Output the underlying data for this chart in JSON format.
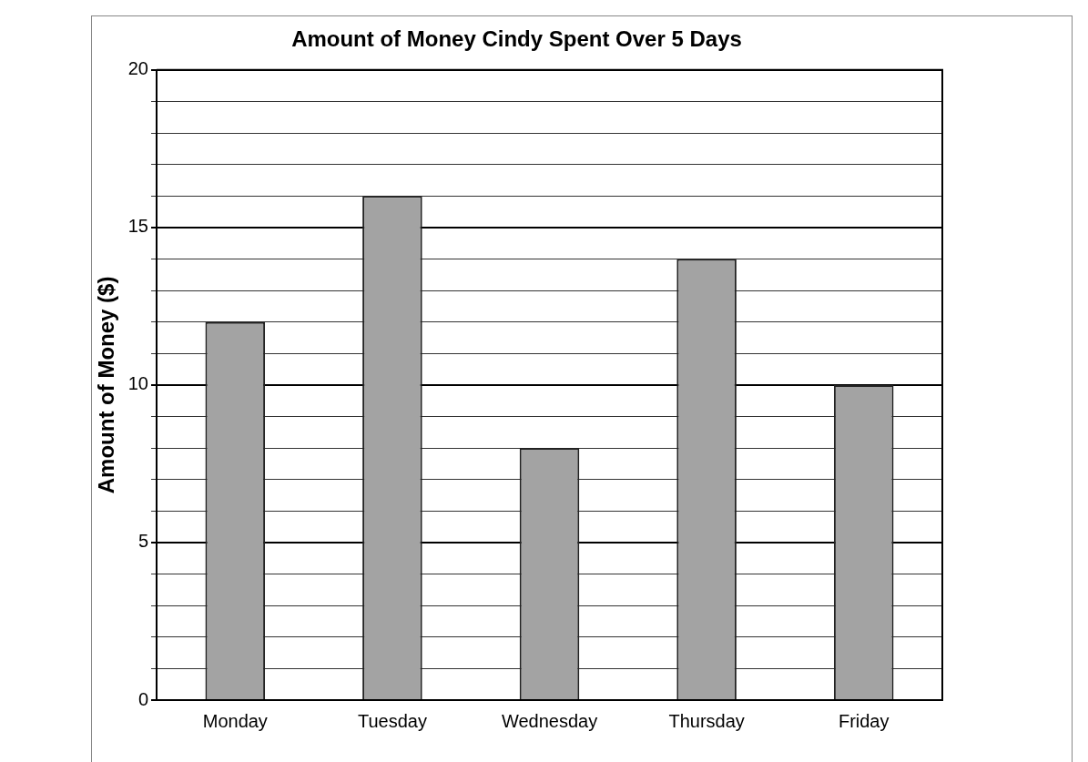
{
  "chart_data": {
    "type": "bar",
    "title": "Amount of Money Cindy Spent Over 5 Days",
    "ylabel": "Amount of Money ($)",
    "categories": [
      "Monday",
      "Tuesday",
      "Wednesday",
      "Thursday",
      "Friday"
    ],
    "values": [
      12,
      16,
      8,
      14,
      10
    ],
    "color": "#a3a3a3",
    "ylim": [
      0,
      20
    ],
    "yticks": [
      0,
      {
        "value": 1,
        "label": null
      },
      {
        "value": 2,
        "label": null
      },
      {
        "value": 3,
        "label": null
      },
      {
        "value": 4,
        "label": null
      },
      5,
      {
        "value": 6,
        "label": null
      },
      {
        "value": 7,
        "label": null
      },
      {
        "value": 8,
        "label": null
      },
      {
        "value": 9,
        "label": null
      },
      10,
      {
        "value": 11,
        "label": null
      },
      {
        "value": 12,
        "label": null
      },
      {
        "value": 13,
        "label": null
      },
      {
        "value": 14,
        "label": null
      },
      15,
      {
        "value": 16,
        "label": null
      },
      {
        "value": 17,
        "label": null
      },
      {
        "value": 18,
        "label": null
      },
      {
        "value": 19,
        "label": null
      },
      20
    ],
    "grid": "y",
    "legend": false
  }
}
